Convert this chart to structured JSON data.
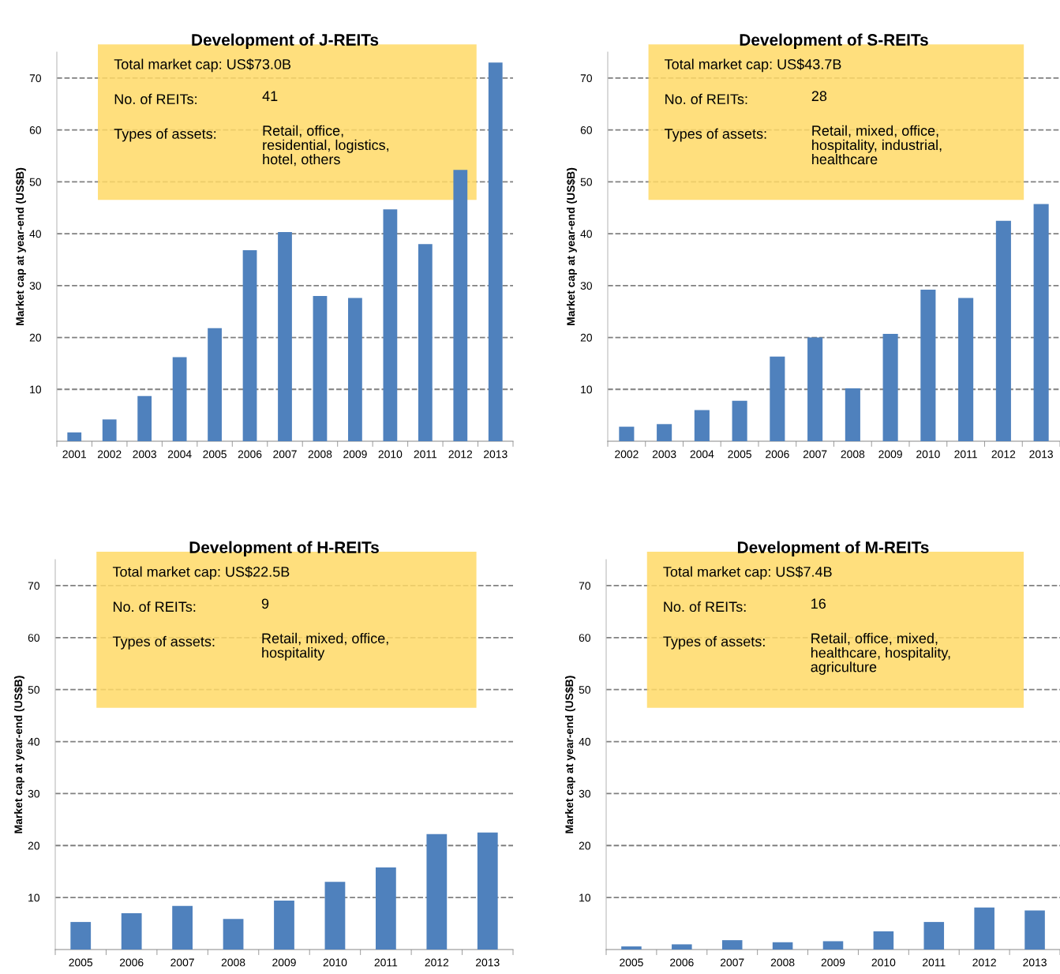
{
  "chart_data": [
    {
      "type": "bar",
      "title": "Development of J-REITs",
      "ylabel": "Market cap at year-end (US$B)",
      "categories": [
        "2001",
        "2002",
        "2003",
        "2004",
        "2005",
        "2006",
        "2007",
        "2008",
        "2009",
        "2010",
        "2011",
        "2012",
        "2013"
      ],
      "values": [
        1.7,
        4.2,
        8.7,
        16.2,
        21.8,
        36.8,
        40.3,
        28.0,
        27.6,
        44.7,
        38.0,
        52.3,
        73.0
      ],
      "color": "#4f81bd",
      "ylim": [
        0,
        75
      ],
      "yticks": [
        10,
        20,
        30,
        40,
        50,
        60,
        70
      ],
      "grid": "y",
      "annotations": [
        "Total market cap: US$73.0B",
        "No. of REITs:",
        "41",
        "Types of assets:",
        "Retail, office,\nresidential, logistics,\nhotel, others"
      ]
    },
    {
      "type": "bar",
      "title": "Development of S-REITs",
      "ylabel": "Market cap at year-end (US$B)",
      "categories": [
        "2002",
        "2003",
        "2004",
        "2005",
        "2006",
        "2007",
        "2008",
        "2009",
        "2010",
        "2011",
        "2012",
        "2013"
      ],
      "values": [
        2.8,
        3.3,
        6.0,
        7.8,
        16.3,
        20.0,
        10.2,
        20.7,
        29.2,
        27.6,
        42.5,
        45.7
      ],
      "color": "#4f81bd",
      "ylim": [
        0,
        75
      ],
      "yticks": [
        10,
        20,
        30,
        40,
        50,
        60,
        70
      ],
      "grid": "y",
      "annotations": [
        "Total market cap: US$43.7B",
        "No. of REITs:",
        "28",
        "Types of assets:",
        "Retail, mixed, office,\nhospitality, industrial,\nhealthcare"
      ]
    },
    {
      "type": "bar",
      "title": "Development of H-REITs",
      "ylabel": "Market cap at year-end (US$B)",
      "categories": [
        "2005",
        "2006",
        "2007",
        "2008",
        "2009",
        "2010",
        "2011",
        "2012",
        "2013"
      ],
      "values": [
        5.3,
        7.0,
        8.4,
        5.9,
        9.4,
        13.0,
        15.8,
        22.2,
        22.5
      ],
      "color": "#4f81bd",
      "ylim": [
        0,
        75
      ],
      "yticks": [
        10,
        20,
        30,
        40,
        50,
        60,
        70
      ],
      "grid": "y",
      "annotations": [
        "Total market cap: US$22.5B",
        "No. of REITs:",
        "9",
        "Types of assets:",
        "Retail, mixed, office,\nhospitality"
      ]
    },
    {
      "type": "bar",
      "title": "Development of M-REITs",
      "ylabel": "Market cap at year-end (US$B)",
      "categories": [
        "2005",
        "2006",
        "2007",
        "2008",
        "2009",
        "2010",
        "2011",
        "2012",
        "2013"
      ],
      "values": [
        0.6,
        1.0,
        1.8,
        1.4,
        1.6,
        3.5,
        5.3,
        8.1,
        7.5
      ],
      "color": "#4f81bd",
      "ylim": [
        0,
        75
      ],
      "yticks": [
        10,
        20,
        30,
        40,
        50,
        60,
        70
      ],
      "grid": "y",
      "annotations": [
        "Total market cap: US$7.4B",
        "No. of REITs:",
        "16",
        "Types of assets:",
        "Retail, office, mixed,\nhealthcare, hospitality,\nagriculture"
      ]
    }
  ]
}
